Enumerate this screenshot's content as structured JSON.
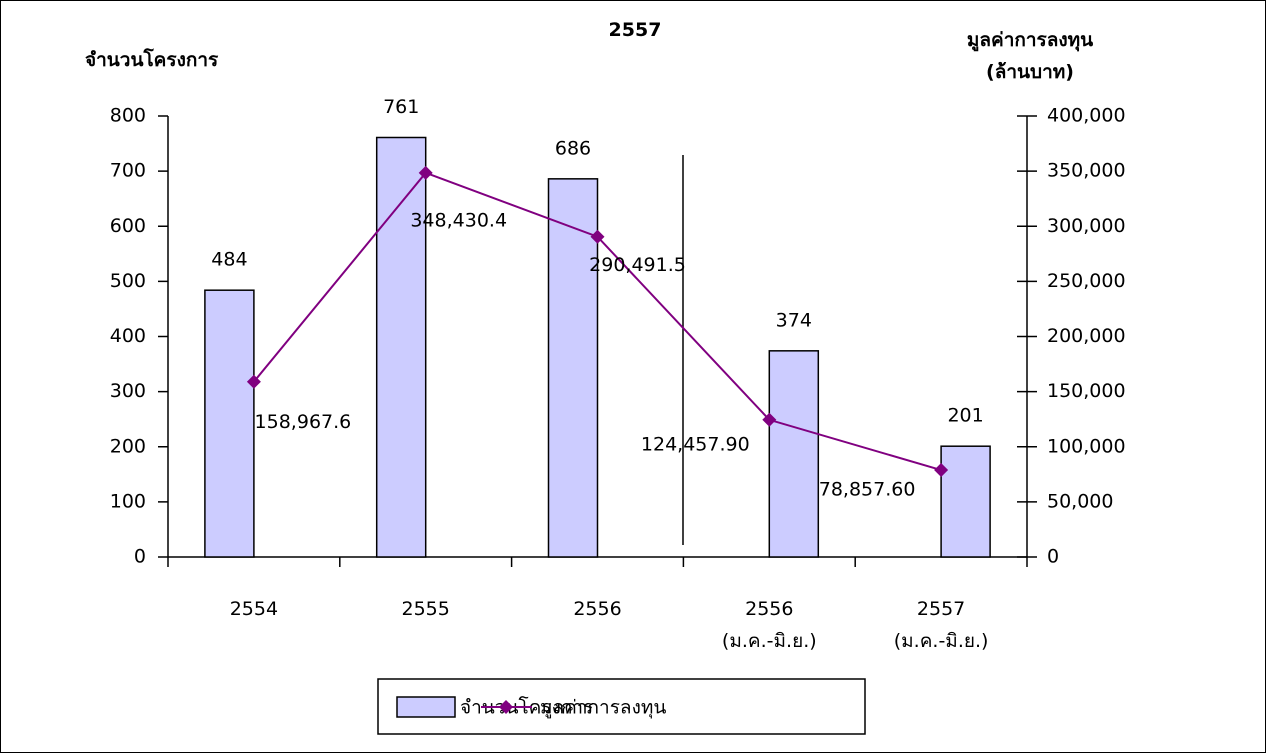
{
  "chart_data": {
    "type": "bar_line",
    "title": "2557",
    "y_label": "จำนวนโครงการ",
    "y2_label": "มูลค่าการลงทุน\n(ล้านบาท)",
    "categories": [
      "2554",
      "2555",
      "2556",
      "2556\n(ม.ค.-มิ.ย.)",
      "2557\n(ม.ค.-มิ.ย.)"
    ],
    "series": [
      {
        "name": "จำนวนโครงการ",
        "type": "bar",
        "color": "#ccccff",
        "values": [
          484,
          761,
          686,
          374,
          201
        ]
      },
      {
        "name": "มูลค่าการลงทุน",
        "type": "line",
        "axis": "y2",
        "color": "#800080",
        "values": [
          158967.6,
          348430.4,
          290491.5,
          124457.9,
          78857.6
        ],
        "value_labels": [
          "158,967.6",
          "348,430.4",
          "290,491.5",
          "124,457.90",
          "78,857.60"
        ]
      }
    ],
    "ylim": [
      0,
      800
    ],
    "yticks": [
      0,
      100,
      200,
      300,
      400,
      500,
      600,
      700,
      800
    ],
    "y2lim": [
      0,
      400000
    ],
    "y2ticks": [
      0,
      {
        "value": 50000,
        "label": "50,000"
      },
      {
        "value": 100000,
        "label": "100,000"
      },
      {
        "value": 150000,
        "label": "150,000"
      },
      {
        "value": 200000,
        "label": "200,000"
      },
      {
        "value": 250000,
        "label": "250,000"
      },
      {
        "value": 300000,
        "label": "300,000"
      },
      {
        "value": 350000,
        "label": "350,000"
      },
      {
        "value": 400000,
        "label": "400,000"
      }
    ]
  }
}
